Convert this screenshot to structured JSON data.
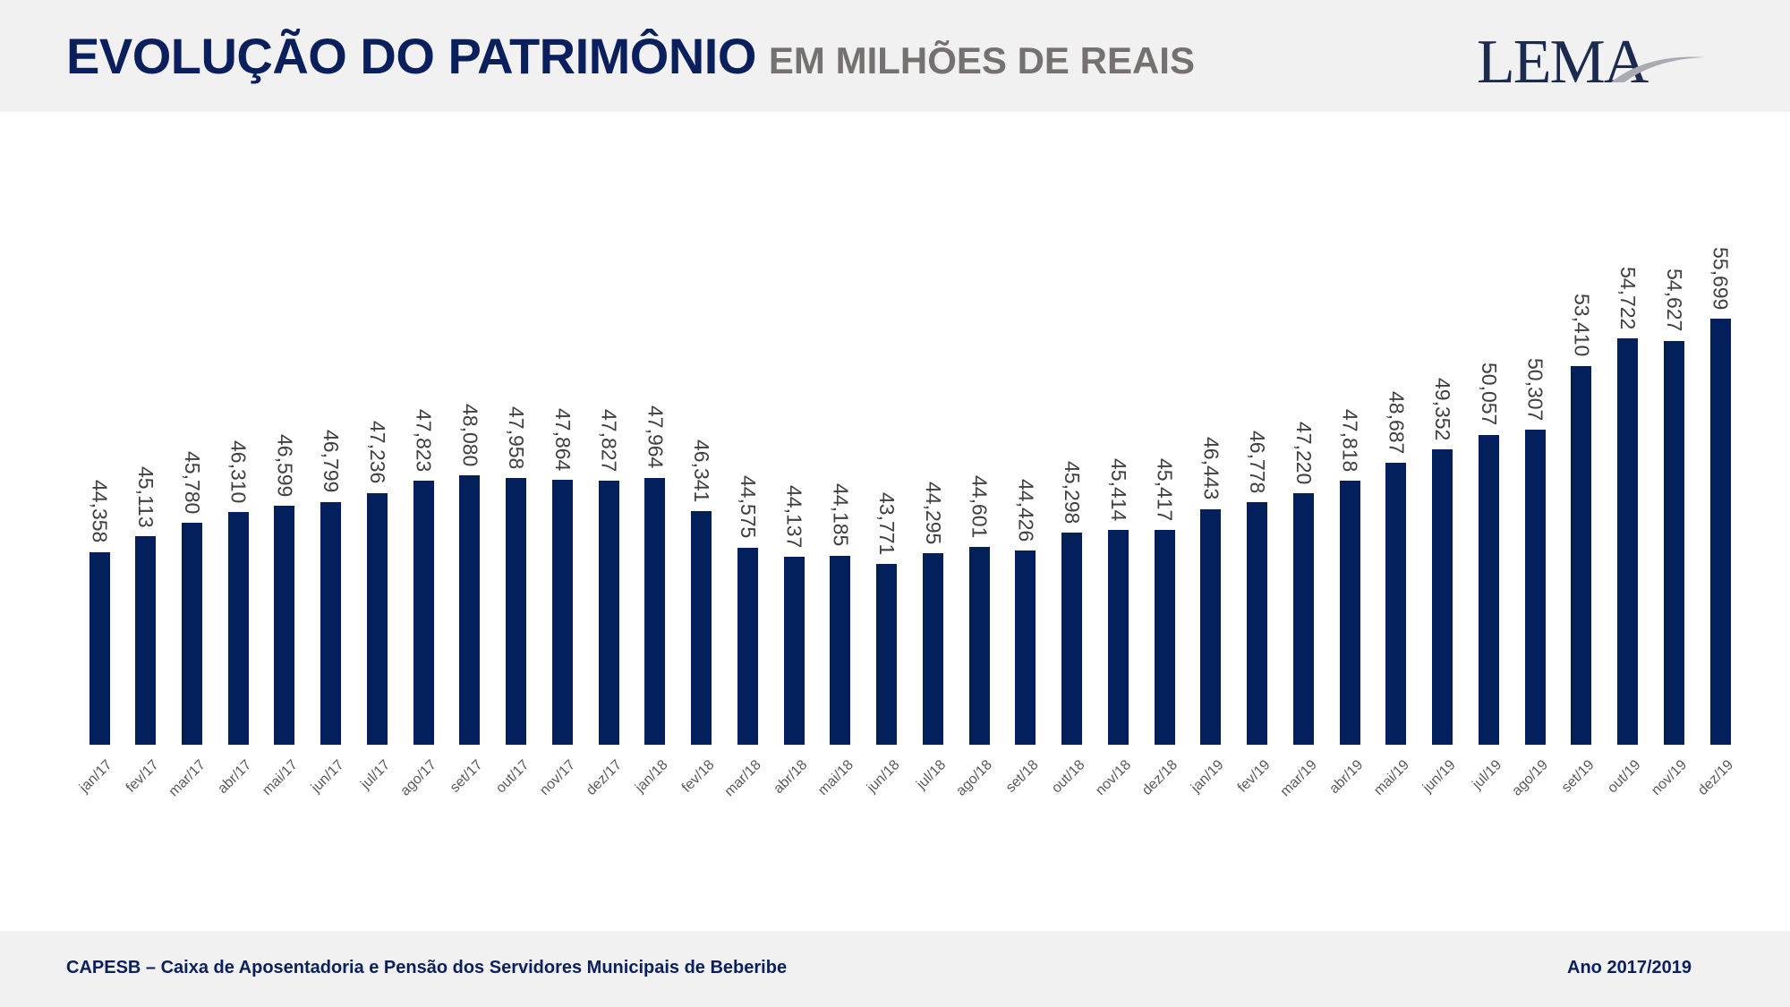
{
  "header": {
    "title": "EVOLUÇÃO DO PATRIMÔNIO",
    "subtitle": "EM MILHÕES DE REAIS",
    "logo": "LEMA"
  },
  "footer": {
    "left": "CAPESB – Caixa de Aposentadoria e Pensão dos Servidores Municipais de Beberibe",
    "right": "Ano 2017/2019"
  },
  "colors": {
    "bar": "#03205c",
    "title": "#0a1f5c",
    "subtitle": "#767171"
  },
  "chart_data": {
    "type": "bar",
    "title": "EVOLUÇÃO DO PATRIMÔNIO EM MILHÕES DE REAIS",
    "xlabel": "",
    "ylabel": "",
    "ylim": [
      35,
      56
    ],
    "grid": false,
    "legend": "none",
    "categories": [
      "jan/17",
      "fev/17",
      "mar/17",
      "abr/17",
      "mai/17",
      "jun/17",
      "jul/17",
      "ago/17",
      "set/17",
      "out/17",
      "nov/17",
      "dez/17",
      "jan/18",
      "fev/18",
      "mar/18",
      "abr/18",
      "mai/18",
      "jun/18",
      "jul/18",
      "ago/18",
      "set/18",
      "out/18",
      "nov/18",
      "dez/18",
      "jan/19",
      "fev/19",
      "mar/19",
      "abr/19",
      "mai/19",
      "jun/19",
      "jul/19",
      "ago/19",
      "set/19",
      "out/19",
      "nov/19",
      "dez/19"
    ],
    "values": [
      44.358,
      45.113,
      45.78,
      46.31,
      46.599,
      46.799,
      47.236,
      47.823,
      48.08,
      47.958,
      47.864,
      47.827,
      47.964,
      46.341,
      44.575,
      44.137,
      44.185,
      43.771,
      44.295,
      44.601,
      44.426,
      45.298,
      45.414,
      45.417,
      46.443,
      46.778,
      47.22,
      47.818,
      48.687,
      49.352,
      50.057,
      50.307,
      53.41,
      54.722,
      54.627,
      55.699
    ],
    "labels": [
      "44,358",
      "45,113",
      "45,780",
      "46,310",
      "46,599",
      "46,799",
      "47,236",
      "47,823",
      "48,080",
      "47,958",
      "47,864",
      "47,827",
      "47,964",
      "46,341",
      "44,575",
      "44,137",
      "44,185",
      "43,771",
      "44,295",
      "44,601",
      "44,426",
      "45,298",
      "45,414",
      "45,417",
      "46,443",
      "46,778",
      "47,220",
      "47,818",
      "48,687",
      "49,352",
      "50,057",
      "50,307",
      "53,410",
      "54,722",
      "54,627",
      "55,699"
    ]
  }
}
